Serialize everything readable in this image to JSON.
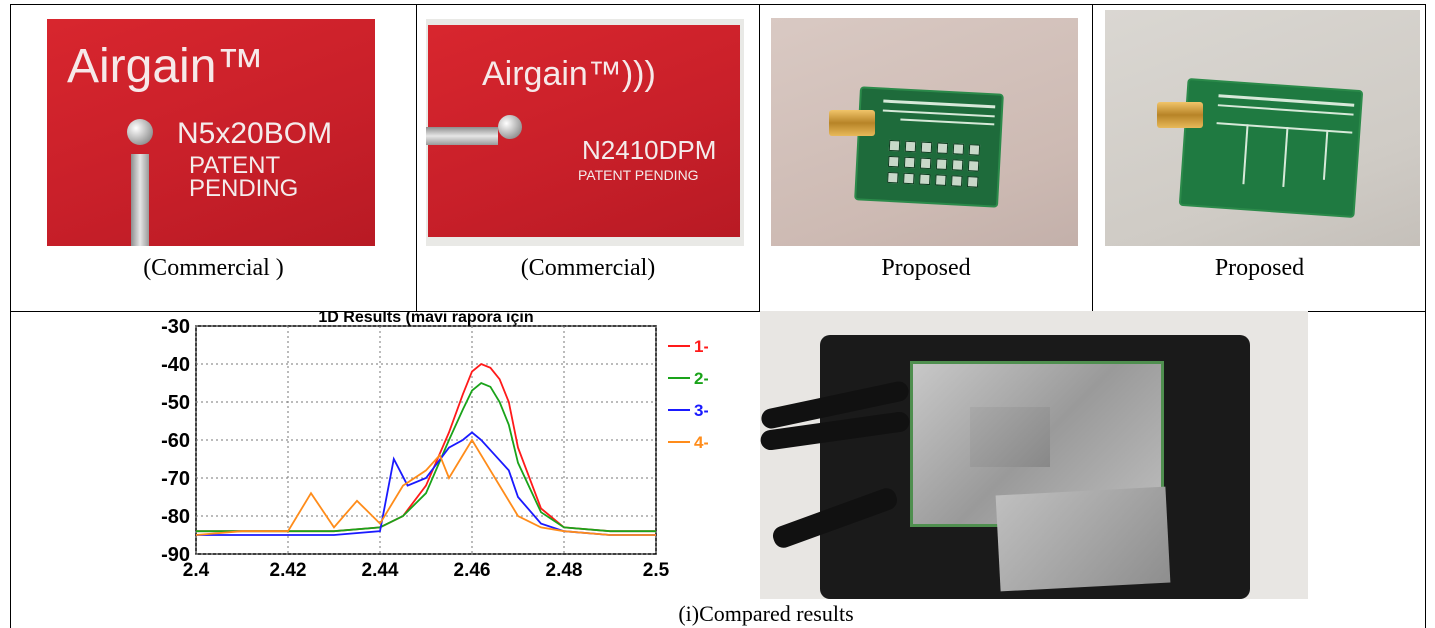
{
  "top_row": {
    "captions": [
      "(Commercial )",
      "(Commercial)",
      "Proposed",
      "Proposed"
    ],
    "commercial_1": {
      "brand": "Airgain™",
      "part": "N5x20BOM",
      "line1": "PATENT",
      "line2": "PENDING"
    },
    "commercial_2": {
      "brand": "Airgain™)))",
      "part": "N2410DPM",
      "line1": "PATENT PENDING"
    }
  },
  "bottom_row": {
    "caption": "(i)Compared results"
  },
  "chart_data": {
    "type": "line",
    "title": "1D Results (mavi rapora için",
    "xlim": [
      2.4,
      2.5
    ],
    "ylim": [
      -90,
      -30
    ],
    "x_ticks": [
      "2.4",
      "2.42",
      "2.44",
      "2.46",
      "2.48",
      "2.5"
    ],
    "y_ticks": [
      "-30",
      "-40",
      "-50",
      "-60",
      "-70",
      "-80",
      "-90"
    ],
    "grid": true,
    "legend_position": "right",
    "series": [
      {
        "name": "1-",
        "color": "#ff1a1a",
        "x": [
          2.4,
          2.41,
          2.42,
          2.43,
          2.44,
          2.445,
          2.45,
          2.455,
          2.458,
          2.46,
          2.462,
          2.464,
          2.466,
          2.468,
          2.47,
          2.475,
          2.48,
          2.49,
          2.5
        ],
        "y": [
          -84,
          -84,
          -84,
          -84,
          -83,
          -80,
          -72,
          -58,
          -48,
          -42,
          -40,
          -41,
          -44,
          -50,
          -62,
          -78,
          -83,
          -84,
          -84
        ]
      },
      {
        "name": "2-",
        "color": "#1aa31a",
        "x": [
          2.4,
          2.41,
          2.42,
          2.43,
          2.44,
          2.445,
          2.45,
          2.455,
          2.458,
          2.46,
          2.462,
          2.464,
          2.466,
          2.468,
          2.47,
          2.475,
          2.48,
          2.49,
          2.5
        ],
        "y": [
          -84,
          -84,
          -84,
          -84,
          -83,
          -80,
          -74,
          -60,
          -52,
          -47,
          -45,
          -46,
          -50,
          -56,
          -66,
          -79,
          -83,
          -84,
          -84
        ]
      },
      {
        "name": "3-",
        "color": "#1a1aff",
        "x": [
          2.4,
          2.41,
          2.42,
          2.43,
          2.44,
          2.443,
          2.446,
          2.45,
          2.455,
          2.458,
          2.46,
          2.462,
          2.465,
          2.468,
          2.47,
          2.475,
          2.48,
          2.49,
          2.5
        ],
        "y": [
          -85,
          -85,
          -85,
          -85,
          -84,
          -65,
          -72,
          -70,
          -62,
          -60,
          -58,
          -60,
          -64,
          -68,
          -75,
          -82,
          -84,
          -85,
          -85
        ]
      },
      {
        "name": "4-",
        "color": "#ff8c1a",
        "x": [
          2.4,
          2.41,
          2.42,
          2.425,
          2.43,
          2.435,
          2.44,
          2.445,
          2.45,
          2.453,
          2.455,
          2.46,
          2.463,
          2.466,
          2.47,
          2.475,
          2.48,
          2.49,
          2.5
        ],
        "y": [
          -85,
          -84,
          -84,
          -74,
          -83,
          -76,
          -82,
          -72,
          -68,
          -64,
          -70,
          -60,
          -66,
          -72,
          -80,
          -83,
          -84,
          -85,
          -85
        ]
      }
    ]
  }
}
